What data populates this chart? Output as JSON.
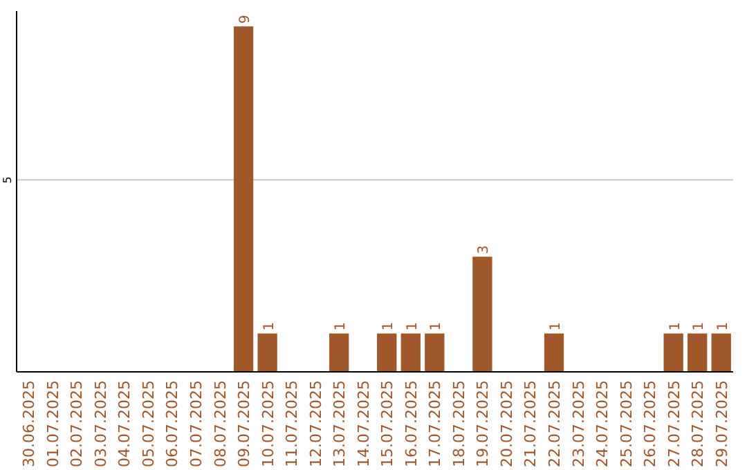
{
  "chart_data": {
    "type": "bar",
    "categories": [
      "30.06.2025",
      "01.07.2025",
      "02.07.2025",
      "03.07.2025",
      "04.07.2025",
      "05.07.2025",
      "06.07.2025",
      "07.07.2025",
      "08.07.2025",
      "09.07.2025",
      "10.07.2025",
      "11.07.2025",
      "12.07.2025",
      "13.07.2025",
      "14.07.2025",
      "15.07.2025",
      "16.07.2025",
      "17.07.2025",
      "18.07.2025",
      "19.07.2025",
      "20.07.2025",
      "21.07.2025",
      "22.07.2025",
      "23.07.2025",
      "24.07.2025",
      "25.07.2025",
      "26.07.2025",
      "27.07.2025",
      "28.07.2025",
      "29.07.2025"
    ],
    "values": [
      0,
      0,
      0,
      0,
      0,
      0,
      0,
      0,
      0,
      9,
      1,
      0,
      0,
      1,
      0,
      1,
      1,
      1,
      0,
      3,
      0,
      0,
      1,
      0,
      0,
      0,
      0,
      1,
      1,
      1
    ],
    "value_labels": [
      null,
      null,
      null,
      null,
      null,
      null,
      null,
      null,
      null,
      "9",
      "1",
      null,
      null,
      "1",
      null,
      "1",
      "1",
      "1",
      null,
      "3",
      null,
      null,
      "1",
      null,
      null,
      null,
      null,
      "1",
      "1",
      "1"
    ],
    "color": "#a0582a",
    "ylim": [
      0,
      9.4
    ],
    "yticks": [
      5
    ],
    "grid": "y"
  }
}
